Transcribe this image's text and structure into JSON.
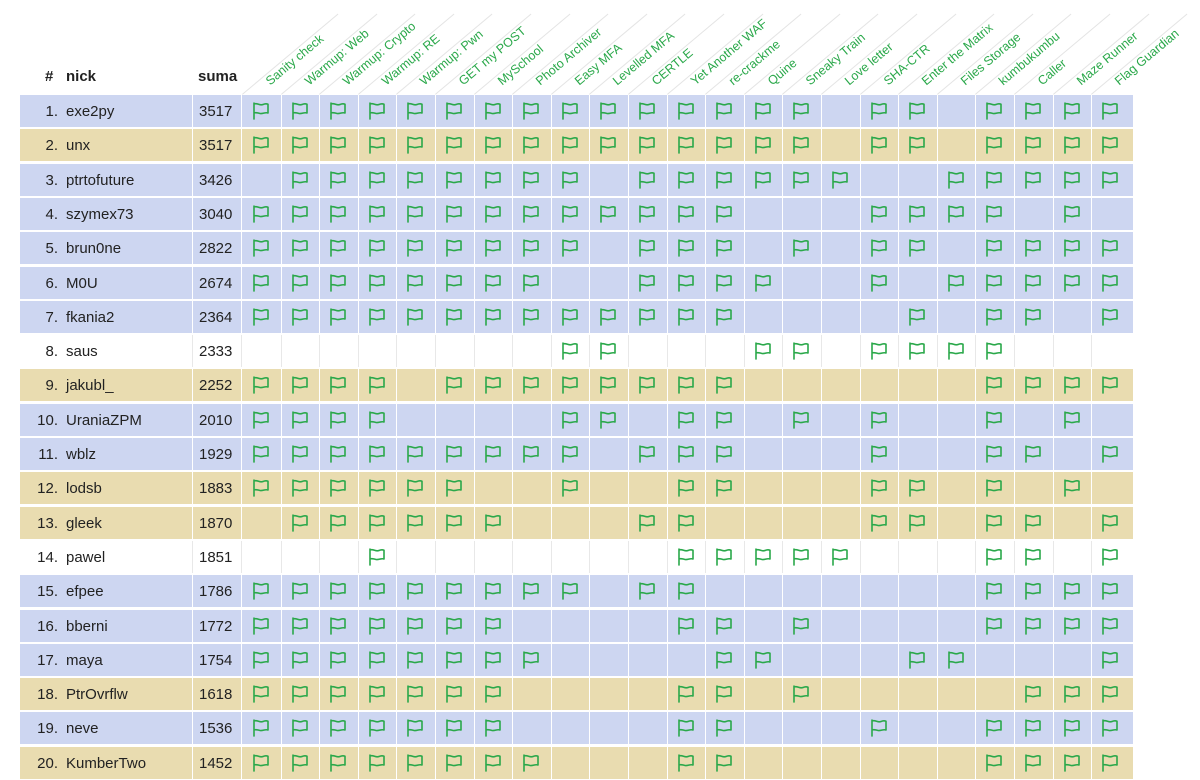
{
  "headers": {
    "rank": "#",
    "nick": "nick",
    "score": "suma"
  },
  "challenges": [
    "Sanity check",
    "Warmup: Web",
    "Warmup: Crypto",
    "Warmup: RE",
    "Warmup: Pwn",
    "GET my POST",
    "MySchool",
    "Photo Archiver",
    "Easy MFA",
    "Levelled MFA",
    "CERTLE",
    "Yet Another WAF",
    "re-crackme",
    "Quine",
    "Sneaky Train",
    "Love letter",
    "SHA-CTR",
    "Enter the Matrix",
    "Files Storage",
    "kumbukumbu",
    "Caller",
    "Maze Runner",
    "Flag Guardian"
  ],
  "icons": {
    "solved": "flag-icon"
  },
  "colors": {
    "accent": "#2aa84a",
    "row_blue": "#cdd6f1",
    "row_tan": "#e9dcb0"
  },
  "rows": [
    {
      "rank": "1.",
      "nick": "exe2py",
      "score": "3517",
      "color": "blue",
      "solved": [
        1,
        1,
        1,
        1,
        1,
        1,
        1,
        1,
        1,
        1,
        1,
        1,
        1,
        1,
        1,
        0,
        1,
        1,
        0,
        1,
        1,
        1,
        1
      ]
    },
    {
      "rank": "2.",
      "nick": "unx",
      "score": "3517",
      "color": "tan",
      "solved": [
        1,
        1,
        1,
        1,
        1,
        1,
        1,
        1,
        1,
        1,
        1,
        1,
        1,
        1,
        1,
        0,
        1,
        1,
        0,
        1,
        1,
        1,
        1
      ]
    },
    {
      "rank": "3.",
      "nick": "ptrtofuture",
      "score": "3426",
      "color": "blue",
      "solved": [
        0,
        1,
        1,
        1,
        1,
        1,
        1,
        1,
        1,
        0,
        1,
        1,
        1,
        1,
        1,
        1,
        0,
        0,
        1,
        1,
        1,
        1,
        1
      ]
    },
    {
      "rank": "4.",
      "nick": "szymex73",
      "score": "3040",
      "color": "blue",
      "solved": [
        1,
        1,
        1,
        1,
        1,
        1,
        1,
        1,
        1,
        1,
        1,
        1,
        1,
        0,
        0,
        0,
        1,
        1,
        1,
        1,
        0,
        1,
        0
      ]
    },
    {
      "rank": "5.",
      "nick": "brun0ne",
      "score": "2822",
      "color": "blue",
      "solved": [
        1,
        1,
        1,
        1,
        1,
        1,
        1,
        1,
        1,
        0,
        1,
        1,
        1,
        0,
        1,
        0,
        1,
        1,
        0,
        1,
        1,
        1,
        1
      ]
    },
    {
      "rank": "6.",
      "nick": "M0U",
      "score": "2674",
      "color": "blue",
      "solved": [
        1,
        1,
        1,
        1,
        1,
        1,
        1,
        1,
        0,
        0,
        1,
        1,
        1,
        1,
        0,
        0,
        1,
        0,
        1,
        1,
        1,
        1,
        1
      ]
    },
    {
      "rank": "7.",
      "nick": "fkania2",
      "score": "2364",
      "color": "blue",
      "solved": [
        1,
        1,
        1,
        1,
        1,
        1,
        1,
        1,
        1,
        1,
        1,
        1,
        1,
        0,
        0,
        0,
        0,
        1,
        0,
        1,
        1,
        0,
        1
      ]
    },
    {
      "rank": "8.",
      "nick": "saus",
      "score": "2333",
      "color": "white",
      "solved": [
        0,
        0,
        0,
        0,
        0,
        0,
        0,
        0,
        1,
        1,
        0,
        0,
        0,
        1,
        1,
        0,
        1,
        1,
        1,
        1,
        0,
        0,
        0
      ]
    },
    {
      "rank": "9.",
      "nick": "jakubl_",
      "score": "2252",
      "color": "tan",
      "solved": [
        1,
        1,
        1,
        1,
        0,
        1,
        1,
        1,
        1,
        1,
        1,
        1,
        1,
        0,
        0,
        0,
        0,
        0,
        0,
        1,
        1,
        1,
        1
      ]
    },
    {
      "rank": "10.",
      "nick": "UraniaZPM",
      "score": "2010",
      "color": "blue",
      "solved": [
        1,
        1,
        1,
        1,
        0,
        0,
        0,
        0,
        1,
        1,
        0,
        1,
        1,
        0,
        1,
        0,
        1,
        0,
        0,
        1,
        0,
        1,
        0
      ]
    },
    {
      "rank": "11.",
      "nick": "wblz",
      "score": "1929",
      "color": "blue",
      "solved": [
        1,
        1,
        1,
        1,
        1,
        1,
        1,
        1,
        1,
        0,
        1,
        1,
        1,
        0,
        0,
        0,
        1,
        0,
        0,
        1,
        1,
        0,
        1
      ]
    },
    {
      "rank": "12.",
      "nick": "lodsb",
      "score": "1883",
      "color": "tan",
      "solved": [
        1,
        1,
        1,
        1,
        1,
        1,
        0,
        0,
        1,
        0,
        0,
        1,
        1,
        0,
        0,
        0,
        1,
        1,
        0,
        1,
        0,
        1,
        0
      ]
    },
    {
      "rank": "13.",
      "nick": "gleek",
      "score": "1870",
      "color": "tan",
      "solved": [
        0,
        1,
        1,
        1,
        1,
        1,
        1,
        0,
        0,
        0,
        1,
        1,
        0,
        0,
        0,
        0,
        1,
        1,
        0,
        1,
        1,
        0,
        1
      ]
    },
    {
      "rank": "14.",
      "nick": "pawel",
      "score": "1851",
      "color": "white",
      "solved": [
        0,
        0,
        0,
        1,
        0,
        0,
        0,
        0,
        0,
        0,
        0,
        1,
        1,
        1,
        1,
        1,
        0,
        0,
        0,
        1,
        1,
        0,
        1
      ]
    },
    {
      "rank": "15.",
      "nick": "efpee",
      "score": "1786",
      "color": "blue",
      "solved": [
        1,
        1,
        1,
        1,
        1,
        1,
        1,
        1,
        1,
        0,
        1,
        1,
        0,
        0,
        0,
        0,
        0,
        0,
        0,
        1,
        1,
        1,
        1
      ]
    },
    {
      "rank": "16.",
      "nick": "bberni",
      "score": "1772",
      "color": "blue",
      "solved": [
        1,
        1,
        1,
        1,
        1,
        1,
        1,
        0,
        0,
        0,
        0,
        1,
        1,
        0,
        1,
        0,
        0,
        0,
        0,
        1,
        1,
        1,
        1
      ]
    },
    {
      "rank": "17.",
      "nick": "maya",
      "score": "1754",
      "color": "blue",
      "solved": [
        1,
        1,
        1,
        1,
        1,
        1,
        1,
        1,
        0,
        0,
        0,
        0,
        1,
        1,
        0,
        0,
        0,
        1,
        1,
        0,
        0,
        0,
        1
      ]
    },
    {
      "rank": "18.",
      "nick": "PtrOvrflw",
      "score": "1618",
      "color": "tan",
      "solved": [
        1,
        1,
        1,
        1,
        1,
        1,
        1,
        0,
        0,
        0,
        0,
        1,
        1,
        0,
        1,
        0,
        0,
        0,
        0,
        0,
        1,
        1,
        1
      ]
    },
    {
      "rank": "19.",
      "nick": "neve",
      "score": "1536",
      "color": "blue",
      "solved": [
        1,
        1,
        1,
        1,
        1,
        1,
        1,
        0,
        0,
        0,
        0,
        1,
        1,
        0,
        0,
        0,
        1,
        0,
        0,
        1,
        1,
        1,
        1
      ]
    },
    {
      "rank": "20.",
      "nick": "KumberTwo",
      "score": "1452",
      "color": "tan",
      "solved": [
        1,
        1,
        1,
        1,
        1,
        1,
        1,
        1,
        0,
        0,
        0,
        1,
        1,
        0,
        0,
        0,
        0,
        0,
        0,
        1,
        1,
        1,
        1
      ]
    }
  ]
}
